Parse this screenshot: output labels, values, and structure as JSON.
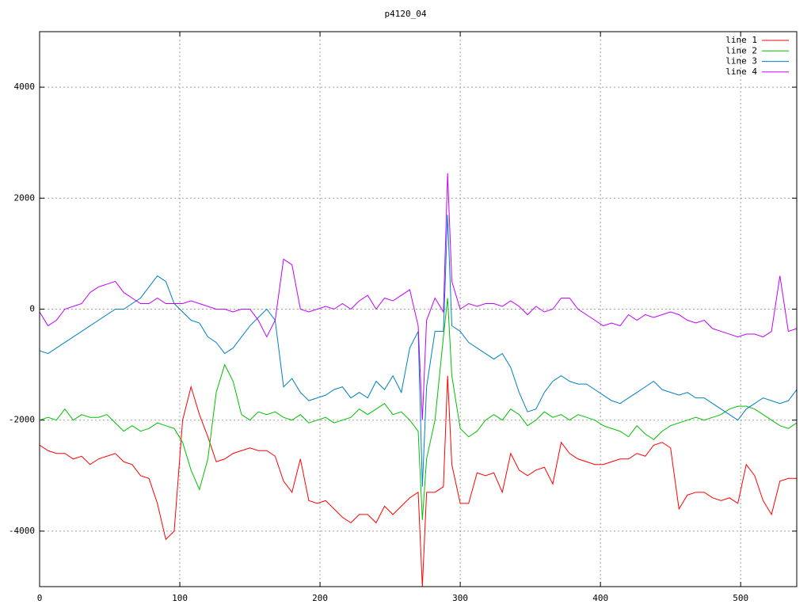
{
  "chart_data": {
    "type": "line",
    "title": "p4120_04",
    "x": [
      0,
      6,
      12,
      18,
      24,
      30,
      36,
      42,
      48,
      54,
      60,
      66,
      72,
      78,
      84,
      90,
      96,
      102,
      108,
      114,
      120,
      126,
      132,
      138,
      144,
      150,
      156,
      162,
      168,
      174,
      180,
      186,
      192,
      198,
      204,
      210,
      216,
      222,
      228,
      234,
      240,
      246,
      252,
      258,
      264,
      270,
      273,
      276,
      282,
      288,
      291,
      294,
      300,
      306,
      312,
      318,
      324,
      330,
      336,
      342,
      348,
      354,
      360,
      366,
      372,
      378,
      384,
      390,
      396,
      402,
      408,
      414,
      420,
      426,
      432,
      438,
      444,
      450,
      456,
      462,
      468,
      474,
      480,
      486,
      492,
      498,
      504,
      510,
      516,
      522,
      528,
      534,
      540
    ],
    "series": [
      {
        "name": "line 1",
        "color": "#ff0000",
        "values": [
          -2450,
          -2550,
          -2600,
          -2600,
          -2700,
          -2650,
          -2800,
          -2700,
          -2650,
          -2600,
          -2750,
          -2800,
          -3000,
          -3050,
          -3500,
          -4150,
          -4000,
          -2000,
          -1400,
          -1900,
          -2300,
          -2750,
          -2700,
          -2600,
          -2550,
          -2500,
          -2550,
          -2550,
          -2650,
          -3100,
          -3300,
          -2700,
          -3450,
          -3500,
          -3450,
          -3600,
          -3750,
          -3850,
          -3700,
          -3700,
          -3850,
          -3550,
          -3700,
          -3550,
          -3400,
          -3300,
          -5000,
          -3300,
          -3300,
          -3200,
          -1200,
          -2800,
          -3500,
          -3500,
          -2950,
          -3000,
          -2950,
          -3300,
          -2600,
          -2900,
          -3000,
          -2900,
          -2850,
          -3150,
          -2400,
          -2600,
          -2700,
          -2750,
          -2800,
          -2800,
          -2750,
          -2700,
          -2700,
          -2600,
          -2650,
          -2450,
          -2400,
          -2500,
          -3600,
          -3350,
          -3300,
          -3300,
          -3400,
          -3450,
          -3400,
          -3500,
          -2800,
          -3000,
          -3450,
          -3700,
          -3100,
          -3050,
          -3050
        ]
      },
      {
        "name": "line 2",
        "color": "#00c000",
        "values": [
          -2000,
          -1950,
          -2000,
          -1800,
          -2000,
          -1900,
          -1950,
          -1950,
          -1900,
          -2050,
          -2200,
          -2100,
          -2200,
          -2150,
          -2050,
          -2100,
          -2150,
          -2400,
          -2900,
          -3250,
          -2700,
          -1500,
          -1000,
          -1300,
          -1900,
          -2000,
          -1850,
          -1900,
          -1850,
          -1950,
          -2000,
          -1900,
          -2050,
          -2000,
          -1950,
          -2050,
          -2000,
          -1950,
          -1800,
          -1900,
          -1800,
          -1700,
          -1900,
          -1850,
          -2000,
          -2200,
          -3800,
          -2700,
          -2000,
          -500,
          200,
          -1200,
          -2150,
          -2300,
          -2200,
          -2000,
          -1900,
          -2000,
          -1800,
          -1900,
          -2100,
          -2000,
          -1850,
          -1950,
          -1900,
          -2000,
          -1900,
          -1950,
          -2000,
          -2100,
          -2150,
          -2200,
          -2300,
          -2100,
          -2250,
          -2350,
          -2200,
          -2100,
          -2050,
          -2000,
          -1950,
          -2000,
          -1950,
          -1900,
          -1800,
          -1750,
          -1750,
          -1800,
          -1900,
          -2000,
          -2100,
          -2150,
          -2050
        ]
      },
      {
        "name": "line 3",
        "color": "#0080c0",
        "values": [
          -750,
          -800,
          -700,
          -600,
          -500,
          -400,
          -300,
          -200,
          -100,
          0,
          0,
          100,
          200,
          400,
          600,
          500,
          100,
          -50,
          -200,
          -250,
          -500,
          -600,
          -800,
          -700,
          -500,
          -300,
          -150,
          0,
          -200,
          -1400,
          -1250,
          -1500,
          -1650,
          -1600,
          -1550,
          -1450,
          -1400,
          -1600,
          -1500,
          -1600,
          -1300,
          -1450,
          -1200,
          -1500,
          -700,
          -400,
          -3200,
          -1400,
          -400,
          -400,
          1700,
          -300,
          -400,
          -600,
          -700,
          -800,
          -900,
          -800,
          -1050,
          -1500,
          -1850,
          -1800,
          -1500,
          -1300,
          -1200,
          -1300,
          -1350,
          -1350,
          -1450,
          -1550,
          -1650,
          -1700,
          -1600,
          -1500,
          -1400,
          -1300,
          -1450,
          -1500,
          -1550,
          -1500,
          -1600,
          -1600,
          -1700,
          -1800,
          -1900,
          -2000,
          -1800,
          -1700,
          -1600,
          -1650,
          -1700,
          -1650,
          -1450
        ]
      },
      {
        "name": "line 4",
        "color": "#c000ff",
        "values": [
          -50,
          -300,
          -200,
          0,
          50,
          100,
          300,
          400,
          450,
          500,
          300,
          200,
          100,
          100,
          200,
          100,
          100,
          100,
          150,
          100,
          50,
          0,
          0,
          -50,
          0,
          0,
          -200,
          -500,
          -200,
          900,
          800,
          0,
          -50,
          0,
          50,
          0,
          100,
          0,
          150,
          250,
          0,
          200,
          150,
          250,
          350,
          -300,
          -2000,
          -200,
          200,
          -50,
          2450,
          500,
          0,
          100,
          50,
          100,
          100,
          50,
          150,
          50,
          -100,
          50,
          -50,
          0,
          200,
          200,
          0,
          -100,
          -200,
          -300,
          -250,
          -300,
          -100,
          -200,
          -100,
          -150,
          -100,
          -50,
          -100,
          -200,
          -250,
          -200,
          -350,
          -400,
          -450,
          -500,
          -450,
          -450,
          -500,
          -400,
          600,
          -400,
          -350
        ]
      }
    ],
    "xlim": [
      0,
      540
    ],
    "xticks": [
      0,
      100,
      200,
      300,
      400,
      500
    ],
    "ylim": [
      -5000,
      5000
    ],
    "yticks": [
      -4000,
      -2000,
      0,
      2000,
      4000
    ],
    "grid": true,
    "legend": "top-right"
  }
}
